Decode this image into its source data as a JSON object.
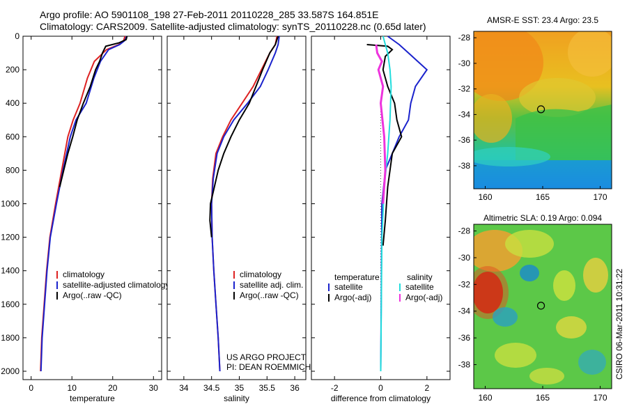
{
  "header": {
    "line1": "Argo profile: AO 5901108_198 27-Feb-2011 20110228_285 33.587S 164.851E",
    "line2": "Climatology: CARS2009. Satellite-adjusted climatology: synTS_20110228.nc (0.65d later)"
  },
  "side_text": "CSIRO 06-Mar-2011 10:31:22",
  "colors": {
    "climatology": "#dd2222",
    "satellite": "#1a22cc",
    "argo": "#000000",
    "sat_salinity": "#22dddd",
    "argo_salinity": "#ee33dd"
  },
  "chart_data": [
    {
      "type": "line",
      "xlabel": "temperature",
      "ylabel": "",
      "xlim": [
        -2,
        32
      ],
      "ylim": [
        2050,
        0
      ],
      "y_reversed": true,
      "x_ticks": [
        "0",
        "10",
        "20",
        "30"
      ],
      "y_ticks": [
        "0",
        "200",
        "400",
        "600",
        "800",
        "1000",
        "1200",
        "1400",
        "1600",
        "1800",
        "2000"
      ],
      "legend": [
        "climatology",
        "satellite-adjusted climatology",
        "Argo(..raw -QC)"
      ],
      "legend_position": "lower-right",
      "series": [
        {
          "name": "climatology",
          "color": "climatology",
          "x": [
            23.0,
            22.7,
            21.5,
            18.5,
            15.5,
            13.8,
            12.0,
            10.3,
            9.0,
            7.5,
            6.0,
            4.6,
            3.8,
            3.2,
            2.6,
            2.3
          ],
          "y": [
            0,
            25,
            50,
            80,
            150,
            250,
            400,
            500,
            600,
            800,
            1000,
            1200,
            1400,
            1600,
            1800,
            2000
          ]
        },
        {
          "name": "satellite-adjusted climatology",
          "color": "satellite",
          "x": [
            23.4,
            23.0,
            21.7,
            19.0,
            17.0,
            15.4,
            13.5,
            11.0,
            9.6,
            7.8,
            6.2,
            4.7,
            3.9,
            3.3,
            2.7,
            2.4
          ],
          "y": [
            0,
            25,
            50,
            80,
            150,
            250,
            400,
            500,
            600,
            800,
            1000,
            1200,
            1400,
            1600,
            1800,
            2000
          ]
        },
        {
          "name": "Argo(..raw -QC)",
          "color": "argo",
          "x": [
            23.5,
            23.3,
            21.5,
            18.3,
            17.5,
            16.8,
            15.8,
            14.5,
            12.8,
            11.3,
            10.2,
            9.0,
            8.0,
            7.0
          ],
          "y": [
            0,
            20,
            40,
            60,
            100,
            150,
            200,
            300,
            400,
            500,
            600,
            700,
            800,
            900
          ]
        }
      ]
    },
    {
      "type": "line",
      "xlabel": "salinity",
      "xlim": [
        33.7,
        36.2
      ],
      "ylim": [
        2050,
        0
      ],
      "y_reversed": true,
      "x_ticks": [
        "34",
        "34.5",
        "35",
        "35.5",
        "36"
      ],
      "legend": [
        "climatology",
        "satellite adj. clim.",
        "Argo(..raw -QC)"
      ],
      "legend_position": "lower-right",
      "annotation": [
        "US ARGO PROJECT",
        "PI: DEAN ROEMMICH"
      ],
      "series": [
        {
          "name": "climatology",
          "color": "climatology",
          "x": [
            35.68,
            35.65,
            35.55,
            35.4,
            35.25,
            35.05,
            34.85,
            34.7,
            34.58,
            34.52,
            34.5,
            34.51,
            34.54,
            34.58,
            34.62,
            34.65
          ],
          "y": [
            0,
            50,
            100,
            200,
            300,
            400,
            500,
            600,
            700,
            850,
            1000,
            1200,
            1400,
            1600,
            1800,
            2000
          ]
        },
        {
          "name": "satellite adj. clim.",
          "color": "satellite",
          "x": [
            35.72,
            35.7,
            35.65,
            35.52,
            35.38,
            35.15,
            34.9,
            34.72,
            34.6,
            34.53,
            34.5,
            34.51,
            34.54,
            34.58,
            34.62,
            34.65
          ],
          "y": [
            0,
            50,
            100,
            200,
            300,
            400,
            500,
            600,
            700,
            850,
            1000,
            1200,
            1400,
            1600,
            1800,
            2000
          ]
        },
        {
          "name": "Argo(..raw -QC)",
          "color": "argo",
          "x": [
            35.7,
            35.65,
            35.55,
            35.42,
            35.3,
            35.18,
            35.0,
            34.85,
            34.72,
            34.62,
            34.55,
            34.48,
            34.47,
            34.5
          ],
          "y": [
            0,
            50,
            100,
            200,
            300,
            400,
            500,
            600,
            700,
            800,
            900,
            1000,
            1100,
            1200
          ]
        }
      ]
    },
    {
      "type": "line",
      "xlabel": "difference from climatology",
      "xlim": [
        -3,
        3
      ],
      "ylim": [
        2050,
        0
      ],
      "y_reversed": true,
      "x_ticks": [
        "-2",
        "0",
        "2"
      ],
      "legend_groups": [
        {
          "title": "temperature",
          "entries": [
            "satellite",
            "Argo(-adj)"
          ]
        },
        {
          "title": "salinity",
          "entries": [
            "satellite",
            "Argo(-adj)"
          ]
        }
      ],
      "legend_position": "lower",
      "series": [
        {
          "name": "temperature satellite",
          "color": "satellite",
          "x": [
            0.3,
            0.8,
            1.2,
            1.6,
            2.0,
            1.5,
            1.3,
            1.2,
            0.8,
            0.5,
            0.2,
            0.05,
            0
          ],
          "y": [
            0,
            50,
            100,
            150,
            200,
            300,
            400,
            500,
            600,
            700,
            800,
            1000,
            2000
          ]
        },
        {
          "name": "temperature Argo(-adj)",
          "color": "argo",
          "x": [
            -0.6,
            0.3,
            0.5,
            0.2,
            0.1,
            0.3,
            0.6,
            0.7,
            0.9,
            0.5,
            0.4,
            0.3,
            0.2,
            0.1
          ],
          "y": [
            50,
            60,
            80,
            120,
            200,
            300,
            400,
            500,
            600,
            700,
            800,
            900,
            1100,
            1250
          ]
        },
        {
          "name": "salinity satellite",
          "color": "sat_salinity",
          "x": [
            0.1,
            0.2,
            0.3,
            0.4,
            0.45,
            0.4,
            0.3,
            0.15,
            0.05,
            0
          ],
          "y": [
            0,
            50,
            100,
            200,
            300,
            500,
            700,
            900,
            1200,
            2000
          ]
        },
        {
          "name": "salinity Argo(-adj)",
          "color": "argo_salinity",
          "x": [
            -0.2,
            -0.15,
            0.05,
            -0.1,
            0.1,
            0.0,
            0.15,
            0.2,
            0.1
          ],
          "y": [
            50,
            100,
            150,
            200,
            300,
            400,
            600,
            800,
            1000
          ]
        }
      ]
    },
    {
      "type": "heatmap",
      "title": "AMSR-E SST: 23.4 Argo: 23.5",
      "xlim": [
        159,
        171
      ],
      "ylim": [
        -39.8,
        -27.5
      ],
      "x_ticks": [
        "160",
        "165",
        "170"
      ],
      "y_ticks": [
        "-28",
        "-30",
        "-32",
        "-34",
        "-36",
        "-38"
      ],
      "marker": {
        "lon": 164.85,
        "lat": -33.59
      }
    },
    {
      "type": "heatmap",
      "title": "Altimetric SLA: 0.19 Argo: 0.094",
      "xlim": [
        159,
        171
      ],
      "ylim": [
        -39.8,
        -27.5
      ],
      "x_ticks": [
        "160",
        "165",
        "170"
      ],
      "y_ticks": [
        "-28",
        "-30",
        "-32",
        "-34",
        "-36",
        "-38"
      ],
      "marker": {
        "lon": 164.85,
        "lat": -33.59
      }
    }
  ]
}
